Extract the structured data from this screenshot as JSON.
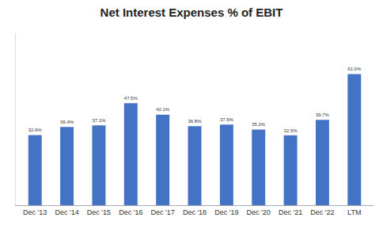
{
  "chart_data": {
    "type": "bar",
    "title": "Net Interest Expenses % of EBIT",
    "categories": [
      "Dec '13",
      "Dec '14",
      "Dec '15",
      "Dec '16",
      "Dec '17",
      "Dec '18",
      "Dec '19",
      "Dec '20",
      "Dec '21",
      "Dec '22",
      "LTM"
    ],
    "values": [
      32.6,
      36.4,
      37.1,
      47.5,
      42.1,
      36.8,
      37.5,
      35.2,
      32.5,
      39.7,
      61.0
    ],
    "value_labels": [
      "32.6%",
      "36.4%",
      "37.1%",
      "47.5%",
      "42.1%",
      "36.8%",
      "37.5%",
      "35.2%",
      "32.5%",
      "39.7%",
      "61.0%"
    ],
    "data_labels": true,
    "color": "#4472C4",
    "ylim": [
      0,
      80
    ],
    "yticks": [],
    "tick_labels": "x",
    "grid": false
  }
}
